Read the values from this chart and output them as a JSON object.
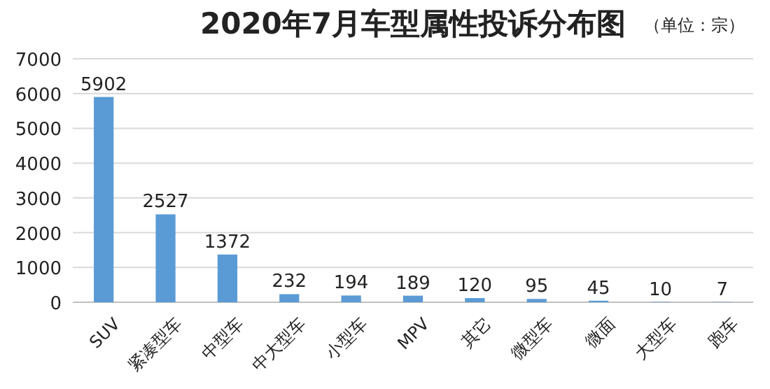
{
  "chart_data": {
    "type": "bar",
    "title": "2020年7月车型属性投诉分布图",
    "subtitle": "（单位：宗）",
    "categories": [
      "SUV",
      "紧凑型车",
      "中型车",
      "中大型车",
      "小型车",
      "MPV",
      "其它",
      "微型车",
      "微面",
      "大型车",
      "跑车"
    ],
    "values": [
      5902,
      2527,
      1372,
      232,
      194,
      189,
      120,
      95,
      45,
      10,
      7
    ],
    "color": "#5b9bd5",
    "ylim": [
      0,
      7000
    ],
    "yticks": [
      0,
      1000,
      2000,
      3000,
      4000,
      5000,
      6000,
      7000
    ],
    "grid": "y",
    "data_labels": true
  }
}
